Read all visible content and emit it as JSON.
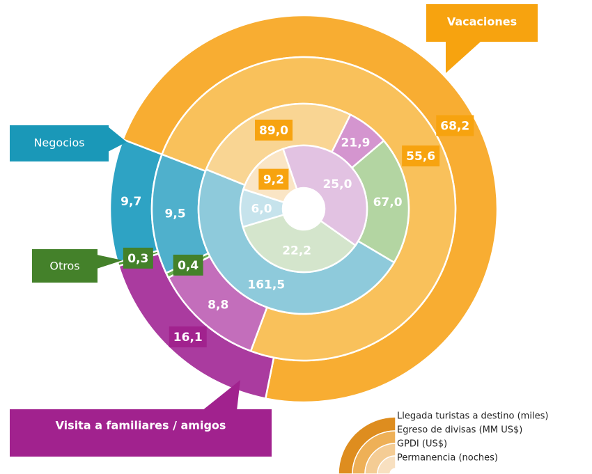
{
  "chart_data": {
    "type": "donut",
    "categories": [
      "Vacaciones",
      "Visita a familiares / amigos",
      "Otros",
      "Negocios"
    ],
    "category_colors": [
      "#f7a30f",
      "#a1228e",
      "#44812a",
      "#1a98b8"
    ],
    "series": [
      {
        "name": "Llegada turistas a destino (miles)",
        "color": "#de8d1f",
        "colors": [
          "#f8ad32",
          "#aa3b9f",
          "#4d9a30",
          "#2ea3c4"
        ],
        "values": [
          68.2,
          16.1,
          0.3,
          9.7
        ],
        "value_labels": [
          "68,2",
          "16,1",
          "0,3",
          "9,7"
        ]
      },
      {
        "name": "Egreso de divisas (MM US$)",
        "color": "#eeb057",
        "colors": [
          "#f9c15b",
          "#c36ebb",
          "#6aae4d",
          "#4fb0cc"
        ],
        "values": [
          55.6,
          8.8,
          0.4,
          9.5
        ],
        "value_labels": [
          "55,6",
          "8,8",
          "0,4",
          "9,5"
        ]
      },
      {
        "name": "GPDI (US$)",
        "color": "#f4cc94",
        "colors": [
          "#f9d593",
          "#d495cf",
          "#b3d5a2",
          "#8ecadb"
        ],
        "values": [
          89.0,
          21.9,
          67.0,
          161.5
        ],
        "value_labels": [
          "89,0",
          "21,9",
          "67,0",
          "161,5"
        ]
      },
      {
        "name": "Permanencia (noches)",
        "color": "#f8e0c0",
        "colors": [
          "#fae5c5",
          "#e2c2e2",
          "#d4e5cc",
          "#c6e3ec"
        ],
        "values": [
          9.2,
          25.0,
          22.2,
          6.0
        ],
        "value_labels": [
          "9,2",
          "25,0",
          "22,2",
          "6,0"
        ]
      }
    ]
  }
}
